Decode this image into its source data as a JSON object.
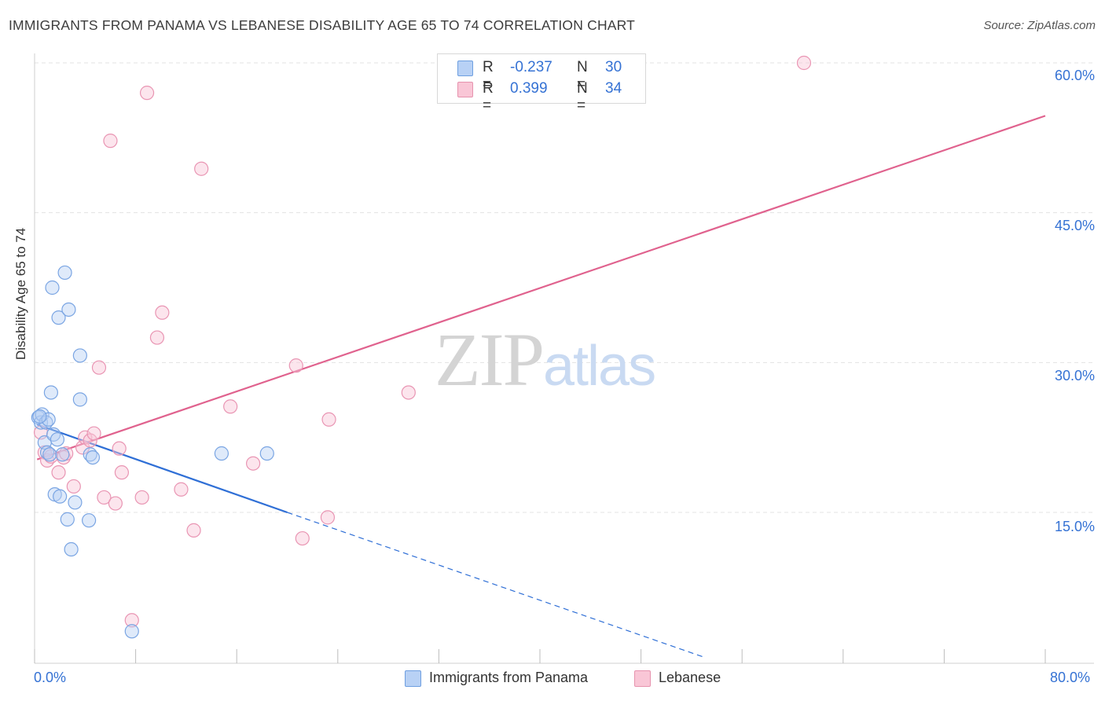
{
  "title": "IMMIGRANTS FROM PANAMA VS LEBANESE DISABILITY AGE 65 TO 74 CORRELATION CHART",
  "source": "Source: ZipAtlas.com",
  "watermark": {
    "part1": "ZIP",
    "part2": "atlas"
  },
  "legend_top": [
    {
      "r_label": "R =",
      "r_value": "-0.237",
      "n_label": "N =",
      "n_value": "30",
      "fill": "#b8d1f5",
      "stroke": "#6e9fe0"
    },
    {
      "r_label": "R =",
      "r_value": "0.399",
      "n_label": "N =",
      "n_value": "34",
      "fill": "#f9c6d6",
      "stroke": "#e693ae"
    }
  ],
  "legend_bottom": [
    {
      "label": "Immigrants from Panama",
      "fill": "#b8d1f5",
      "stroke": "#6e9fe0"
    },
    {
      "label": "Lebanese",
      "fill": "#f9c6d6",
      "stroke": "#e693ae"
    }
  ],
  "colors": {
    "blue_line": "#2f6fd6",
    "pink_line": "#e0628e",
    "blue_point_stroke": "#7aa5e3",
    "pink_point_stroke": "#e995b3",
    "tick_text": "#3572d4"
  },
  "chart_data": {
    "type": "scatter",
    "ylabel": "Disability Age 65 to 74",
    "xlim": [
      0,
      80
    ],
    "ylim": [
      0,
      62
    ],
    "x_tick_labels": [
      "0.0%",
      "80.0%"
    ],
    "y_ticks": [
      15,
      30,
      45,
      60
    ],
    "y_tick_labels": [
      "15.0%",
      "30.0%",
      "45.0%",
      "60.0%"
    ],
    "grid": true,
    "series": [
      {
        "name": "Immigrants from Panama",
        "points": [
          [
            0.3,
            24.5
          ],
          [
            0.5,
            24.0
          ],
          [
            0.6,
            24.8
          ],
          [
            0.8,
            22.0
          ],
          [
            0.9,
            24.0
          ],
          [
            1.0,
            21.0
          ],
          [
            1.1,
            24.3
          ],
          [
            1.2,
            20.8
          ],
          [
            1.3,
            27.0
          ],
          [
            1.4,
            37.5
          ],
          [
            1.5,
            22.8
          ],
          [
            1.6,
            16.8
          ],
          [
            1.8,
            22.3
          ],
          [
            1.9,
            34.5
          ],
          [
            2.0,
            16.6
          ],
          [
            2.2,
            20.8
          ],
          [
            2.4,
            39.0
          ],
          [
            2.6,
            14.3
          ],
          [
            2.7,
            35.3
          ],
          [
            2.9,
            11.3
          ],
          [
            3.2,
            16.0
          ],
          [
            3.6,
            30.7
          ],
          [
            3.6,
            26.3
          ],
          [
            4.3,
            14.2
          ],
          [
            4.4,
            20.8
          ],
          [
            4.6,
            20.5
          ],
          [
            7.7,
            3.1
          ],
          [
            14.8,
            20.9
          ],
          [
            18.4,
            20.9
          ],
          [
            0.4,
            24.6
          ]
        ],
        "trend": {
          "x": [
            0.2,
            20.0
          ],
          "y": [
            23.8,
            15.0
          ],
          "dashed_to": [
            53.0,
            0.5
          ]
        }
      },
      {
        "name": "Lebanese",
        "points": [
          [
            0.5,
            23.0
          ],
          [
            0.8,
            21.0
          ],
          [
            1.0,
            20.2
          ],
          [
            1.3,
            20.6
          ],
          [
            1.9,
            19.0
          ],
          [
            2.3,
            20.5
          ],
          [
            2.5,
            20.9
          ],
          [
            3.1,
            17.6
          ],
          [
            3.8,
            21.5
          ],
          [
            4.0,
            22.5
          ],
          [
            4.4,
            22.2
          ],
          [
            4.7,
            22.9
          ],
          [
            5.1,
            29.5
          ],
          [
            5.5,
            16.5
          ],
          [
            6.0,
            52.2
          ],
          [
            6.4,
            15.9
          ],
          [
            6.7,
            21.4
          ],
          [
            6.9,
            19.0
          ],
          [
            7.7,
            4.2
          ],
          [
            8.5,
            16.5
          ],
          [
            8.9,
            57.0
          ],
          [
            9.7,
            32.5
          ],
          [
            10.1,
            35.0
          ],
          [
            11.6,
            17.3
          ],
          [
            12.6,
            13.2
          ],
          [
            13.2,
            49.4
          ],
          [
            15.5,
            25.6
          ],
          [
            17.3,
            19.9
          ],
          [
            20.7,
            29.7
          ],
          [
            21.2,
            12.4
          ],
          [
            23.2,
            14.5
          ],
          [
            23.3,
            24.3
          ],
          [
            29.6,
            27.0
          ],
          [
            60.9,
            60.0
          ]
        ],
        "trend": {
          "x": [
            0.2,
            80.0
          ],
          "y": [
            20.3,
            54.7
          ]
        }
      }
    ]
  }
}
